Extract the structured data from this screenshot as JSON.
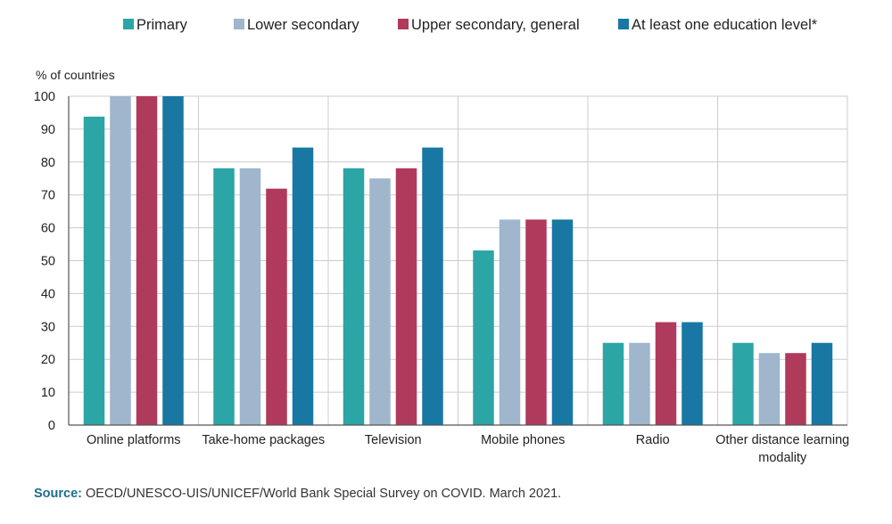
{
  "colors": {
    "primary": "#2ba5a5",
    "lower_secondary": "#9fb6cc",
    "upper_secondary": "#b03a5b",
    "at_least_one": "#1877a3",
    "grid": "#cccccc",
    "axis": "#555555",
    "source_label": "#1a6e8e"
  },
  "chart_data": {
    "type": "bar",
    "title": "",
    "ylabel": "% of countries",
    "xlabel": "",
    "ylim": [
      0,
      100
    ],
    "yticks": [
      0,
      10,
      20,
      30,
      40,
      50,
      60,
      70,
      80,
      90,
      100
    ],
    "grid": true,
    "legend_position": "top",
    "categories": [
      [
        "Online platforms"
      ],
      [
        "Take-home packages"
      ],
      [
        "Television"
      ],
      [
        "Mobile phones"
      ],
      [
        "Radio"
      ],
      [
        "Other distance learning",
        "modality"
      ]
    ],
    "series": [
      {
        "name": "Primary",
        "color_key": "primary",
        "values": [
          93.8,
          78.1,
          78.1,
          53.1,
          25.0,
          25.0
        ]
      },
      {
        "name": "Lower secondary",
        "color_key": "lower_secondary",
        "values": [
          100,
          78.1,
          75.0,
          62.5,
          25.0,
          21.9
        ]
      },
      {
        "name": "Upper secondary, general",
        "color_key": "upper_secondary",
        "values": [
          100,
          71.9,
          78.1,
          62.5,
          31.3,
          21.9
        ]
      },
      {
        "name": "At least one education level*",
        "color_key": "at_least_one",
        "values": [
          100,
          84.4,
          84.4,
          62.5,
          31.3,
          25.0
        ]
      }
    ]
  },
  "source": {
    "label": "Source:",
    "text": "OECD/UNESCO-UIS/UNICEF/World Bank Special Survey on COVID. March 2021."
  }
}
